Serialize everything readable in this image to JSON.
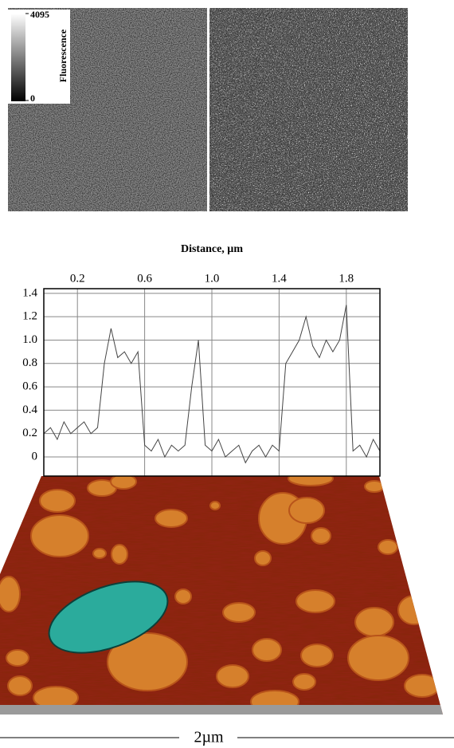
{
  "image_labels": {
    "colorbar_max": "4095",
    "colorbar_min": "0",
    "colorbar_title": "Fluorescence",
    "scale_bar": "2µm"
  },
  "chart_data": {
    "type": "line",
    "xlabel": "Distance, µm",
    "color": "#444444",
    "grid": true,
    "xlim": [
      0,
      2
    ],
    "ylim": [
      -0.164,
      1.44
    ],
    "xticks": [
      0.2,
      0.6,
      {
        "value": 1,
        "label": "1.0"
      },
      1.4,
      1.8
    ],
    "yticks": [
      0,
      0.2,
      0.4,
      0.6,
      0.8,
      {
        "value": 1,
        "label": "1.0"
      },
      1.2,
      1.4
    ],
    "x": [
      0,
      0.04,
      0.08,
      0.12,
      0.16,
      0.2,
      0.24,
      0.28,
      0.32,
      0.36,
      0.4,
      0.44,
      0.48,
      0.52,
      0.56,
      0.6,
      0.64,
      0.68,
      0.72,
      0.76,
      0.8,
      0.84,
      0.88,
      0.92,
      0.96,
      1.0,
      1.04,
      1.08,
      1.12,
      1.16,
      1.2,
      1.24,
      1.28,
      1.32,
      1.36,
      1.4,
      1.44,
      1.48,
      1.52,
      1.56,
      1.6,
      1.64,
      1.68,
      1.72,
      1.76,
      1.8,
      1.84,
      1.88,
      1.92,
      1.96,
      2.0
    ],
    "values": [
      0.2,
      0.25,
      0.15,
      0.3,
      0.2,
      0.25,
      0.3,
      0.2,
      0.25,
      0.8,
      1.1,
      0.85,
      0.9,
      0.8,
      0.9,
      0.1,
      0.05,
      0.15,
      0.0,
      0.1,
      0.05,
      0.1,
      0.6,
      1.0,
      0.1,
      0.05,
      0.15,
      0.0,
      0.05,
      0.1,
      -0.05,
      0.05,
      0.1,
      0.0,
      0.1,
      0.05,
      0.8,
      0.9,
      1.0,
      1.2,
      0.95,
      0.85,
      1.0,
      0.9,
      1.0,
      1.3,
      0.05,
      0.1,
      0.0,
      0.15,
      0.05
    ]
  }
}
